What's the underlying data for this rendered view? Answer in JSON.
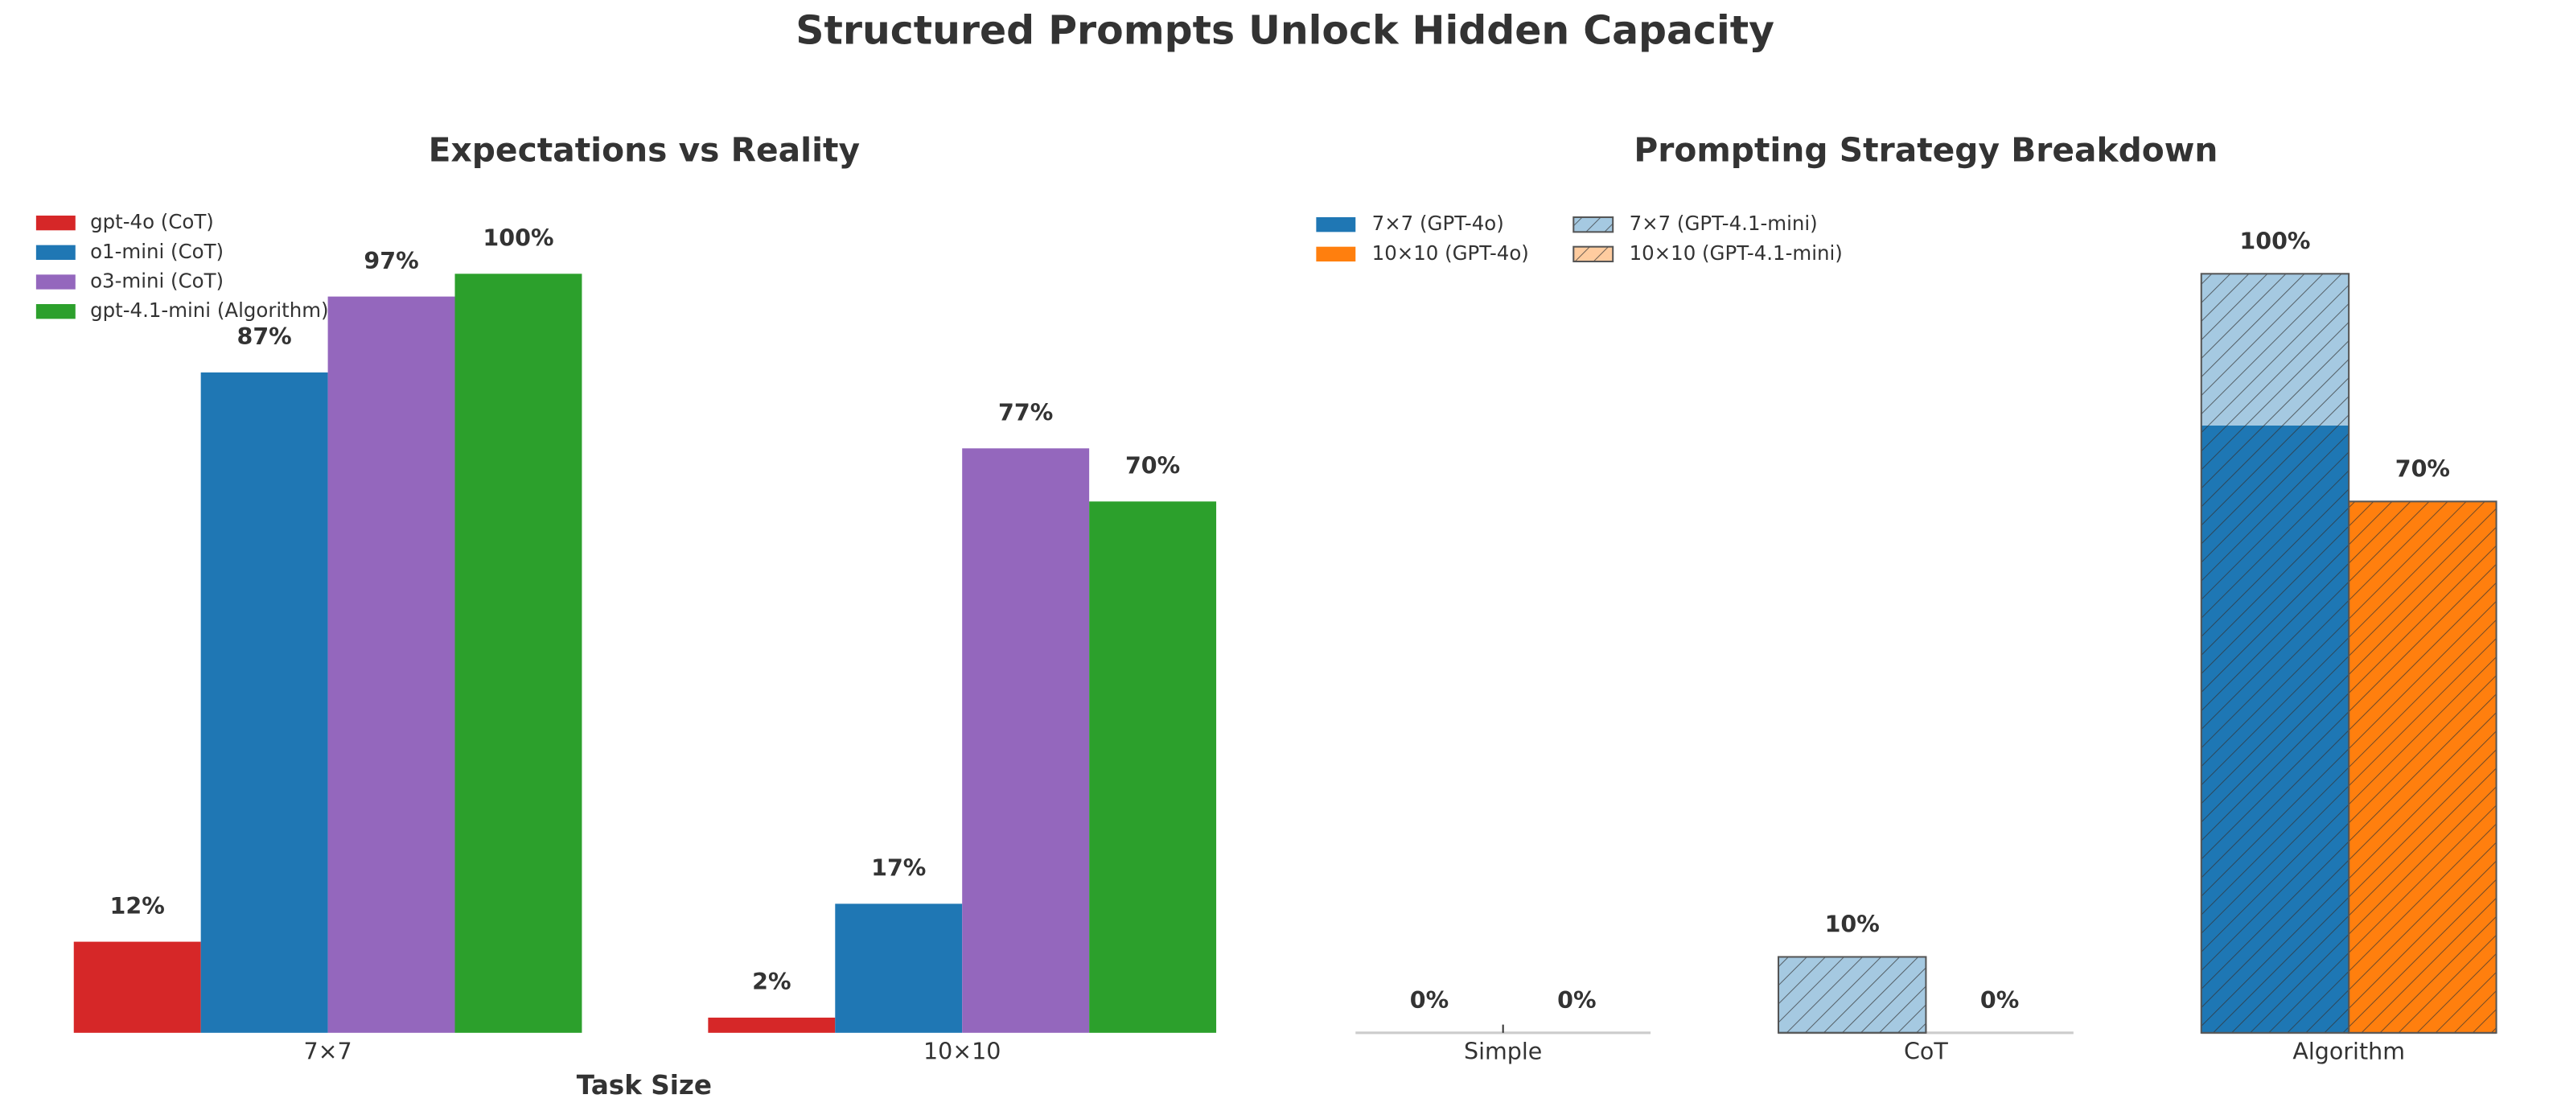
{
  "title": "Structured Prompts Unlock Hidden Capacity",
  "chart_data": [
    {
      "type": "bar",
      "title": "Expectations vs Reality",
      "xlabel": "Task Size",
      "categories": [
        "7×7",
        "10×10"
      ],
      "ylim": [
        0,
        115
      ],
      "series": [
        {
          "name": "gpt-4o (CoT)",
          "color": "#d62728",
          "values": [
            12,
            2
          ],
          "value_labels": [
            "12%",
            "2%"
          ]
        },
        {
          "name": "o1-mini (CoT)",
          "color": "#1f77b4",
          "values": [
            87,
            17
          ],
          "value_labels": [
            "87%",
            "17%"
          ]
        },
        {
          "name": "o3-mini (CoT)",
          "color": "#9467bd",
          "values": [
            97,
            77
          ],
          "value_labels": [
            "97%",
            "77%"
          ]
        },
        {
          "name": "gpt-4.1-mini (Algorithm)",
          "color": "#2ca02c",
          "values": [
            100,
            70
          ],
          "value_labels": [
            "100%",
            "70%"
          ]
        }
      ]
    },
    {
      "type": "overlay-bar",
      "title": "Prompting Strategy Breakdown",
      "categories": [
        "Simple",
        "CoT",
        "Algorithm"
      ],
      "ylim": [
        0,
        115
      ],
      "series": [
        {
          "name": "7×7 (GPT-4o)",
          "color": "#1f77b4",
          "values": [
            0,
            0,
            80
          ]
        },
        {
          "name": "10×10 (GPT-4o)",
          "color": "#ff7f0e",
          "values": [
            0,
            0,
            70
          ]
        },
        {
          "name": "7×7 (GPT-4.1-mini)",
          "color": "#1f77b4",
          "hatch": true,
          "opacity": 0.4,
          "values": [
            0,
            10,
            100
          ],
          "value_labels": [
            "0%",
            "10%",
            "100%"
          ]
        },
        {
          "name": "10×10 (GPT-4.1-mini)",
          "color": "#ff7f0e",
          "hatch": true,
          "opacity": 0.4,
          "values": [
            0,
            0,
            70
          ],
          "value_labels": [
            "0%",
            "0%",
            "70%"
          ]
        }
      ]
    }
  ]
}
